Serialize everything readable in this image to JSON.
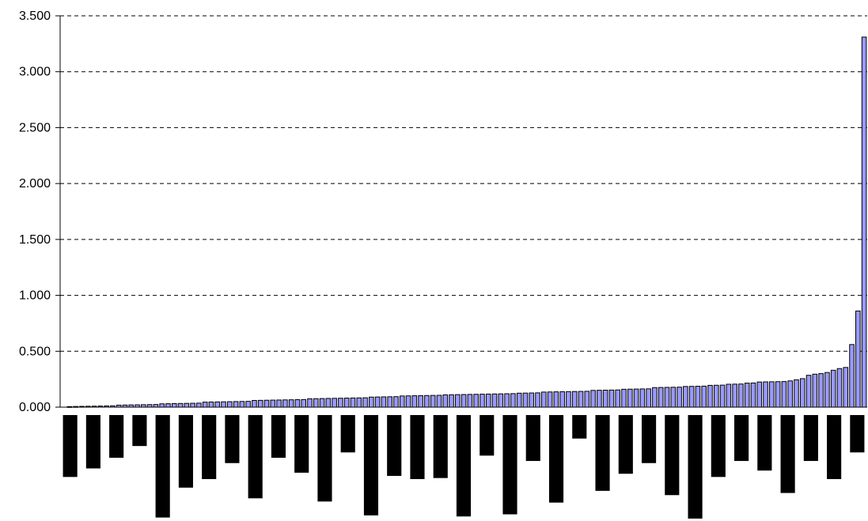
{
  "chart_data": {
    "type": "bar",
    "ylim": [
      0,
      3.5
    ],
    "yticks": [
      {
        "value": 0,
        "label": "0.000"
      },
      {
        "value": 0.5,
        "label": "0.500"
      },
      {
        "value": 1.0,
        "label": "1.000"
      },
      {
        "value": 1.5,
        "label": "1.500"
      },
      {
        "value": 2.0,
        "label": "2.000"
      },
      {
        "value": 2.5,
        "label": "2.500"
      },
      {
        "value": 3.0,
        "label": "3.000"
      },
      {
        "value": 3.5,
        "label": "3.500"
      }
    ],
    "grid": true,
    "legend": "none",
    "bar_fill": "#9999ff",
    "bar_stroke": "#000000",
    "values": [
      0.005,
      0.006,
      0.007,
      0.008,
      0.009,
      0.01,
      0.011,
      0.012,
      0.018,
      0.019,
      0.02,
      0.021,
      0.022,
      0.023,
      0.024,
      0.03,
      0.031,
      0.032,
      0.033,
      0.034,
      0.035,
      0.036,
      0.045,
      0.046,
      0.047,
      0.048,
      0.049,
      0.05,
      0.051,
      0.052,
      0.06,
      0.061,
      0.062,
      0.063,
      0.064,
      0.065,
      0.066,
      0.067,
      0.068,
      0.075,
      0.076,
      0.077,
      0.078,
      0.079,
      0.08,
      0.081,
      0.082,
      0.083,
      0.084,
      0.09,
      0.091,
      0.092,
      0.093,
      0.094,
      0.1,
      0.101,
      0.102,
      0.103,
      0.104,
      0.105,
      0.106,
      0.11,
      0.111,
      0.112,
      0.113,
      0.114,
      0.115,
      0.116,
      0.117,
      0.118,
      0.119,
      0.12,
      0.121,
      0.125,
      0.126,
      0.127,
      0.128,
      0.135,
      0.136,
      0.137,
      0.138,
      0.139,
      0.14,
      0.141,
      0.142,
      0.15,
      0.151,
      0.152,
      0.153,
      0.154,
      0.16,
      0.161,
      0.162,
      0.163,
      0.164,
      0.175,
      0.176,
      0.177,
      0.178,
      0.179,
      0.185,
      0.186,
      0.187,
      0.188,
      0.195,
      0.196,
      0.197,
      0.205,
      0.206,
      0.207,
      0.215,
      0.216,
      0.225,
      0.226,
      0.227,
      0.228,
      0.229,
      0.235,
      0.245,
      0.255,
      0.285,
      0.295,
      0.3,
      0.31,
      0.33,
      0.345,
      0.355,
      0.56,
      0.86,
      3.31
    ],
    "lower_bar_depths": [
      0.58,
      0.5,
      0.4,
      0.29,
      0.96,
      0.68,
      0.6,
      0.45,
      0.78,
      0.4,
      0.54,
      0.81,
      0.35,
      0.94,
      0.57,
      0.6,
      0.59,
      0.95,
      0.38,
      0.93,
      0.43,
      0.82,
      0.22,
      0.71,
      0.55,
      0.45,
      0.75,
      0.97,
      0.58,
      0.43,
      0.52,
      0.73,
      0.43,
      0.6,
      0.35
    ]
  }
}
